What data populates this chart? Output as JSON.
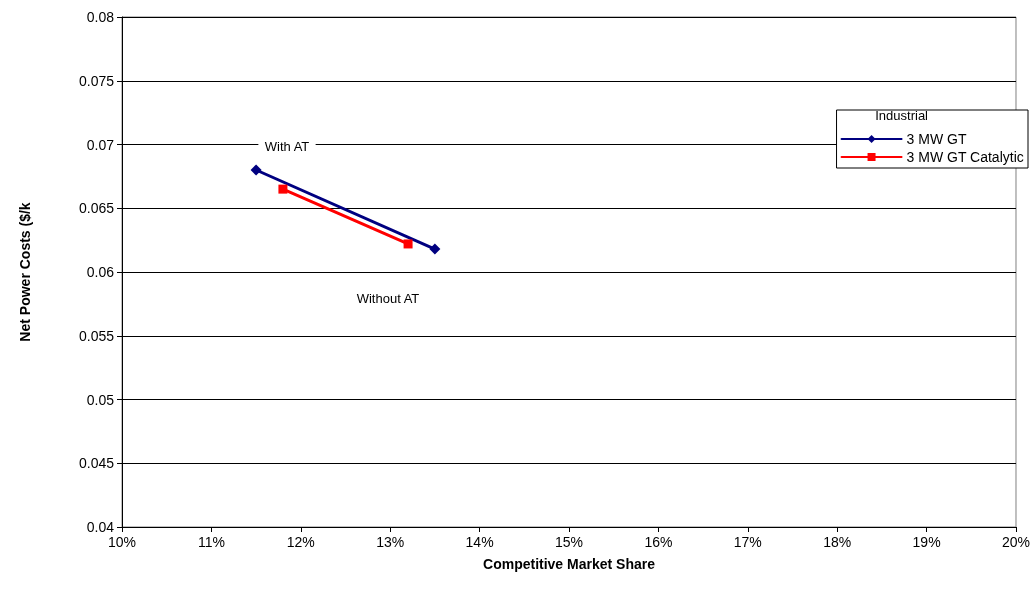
{
  "chart_data": {
    "type": "line",
    "xlabel": "Competitive Market Share",
    "ylabel": "Net Power Costs ($/k",
    "legend_title": "Industrial",
    "legend": "top right",
    "grid": "y",
    "line_style": "solid",
    "xlim": [
      10,
      20
    ],
    "xticks": [
      {
        "value": 10,
        "label": "10%"
      },
      {
        "value": 11,
        "label": "11%"
      },
      {
        "value": 12,
        "label": "12%"
      },
      {
        "value": 13,
        "label": "13%"
      },
      {
        "value": 14,
        "label": "14%"
      },
      {
        "value": 15,
        "label": "15%"
      },
      {
        "value": 16,
        "label": "16%"
      },
      {
        "value": 17,
        "label": "17%"
      },
      {
        "value": 18,
        "label": "18%"
      },
      {
        "value": 19,
        "label": "19%"
      },
      {
        "value": 20,
        "label": "20%"
      }
    ],
    "ylim": [
      0.04,
      0.08
    ],
    "yticks": [
      0.04,
      0.045,
      0.05,
      0.055,
      0.06,
      0.065,
      0.07,
      0.075,
      0.08
    ],
    "series": [
      {
        "name": "3 MW GT",
        "color": "#000080",
        "marker": "diamond",
        "x": [
          11.5,
          13.5
        ],
        "values": [
          0.068,
          0.0618
        ]
      },
      {
        "name": "3 MW GT Catalytic",
        "color": "#ff0000",
        "marker": "square",
        "x": [
          11.8,
          13.2
        ],
        "values": [
          0.0665,
          0.0622
        ]
      }
    ],
    "annotations": [
      "With AT",
      "Without AT"
    ]
  }
}
